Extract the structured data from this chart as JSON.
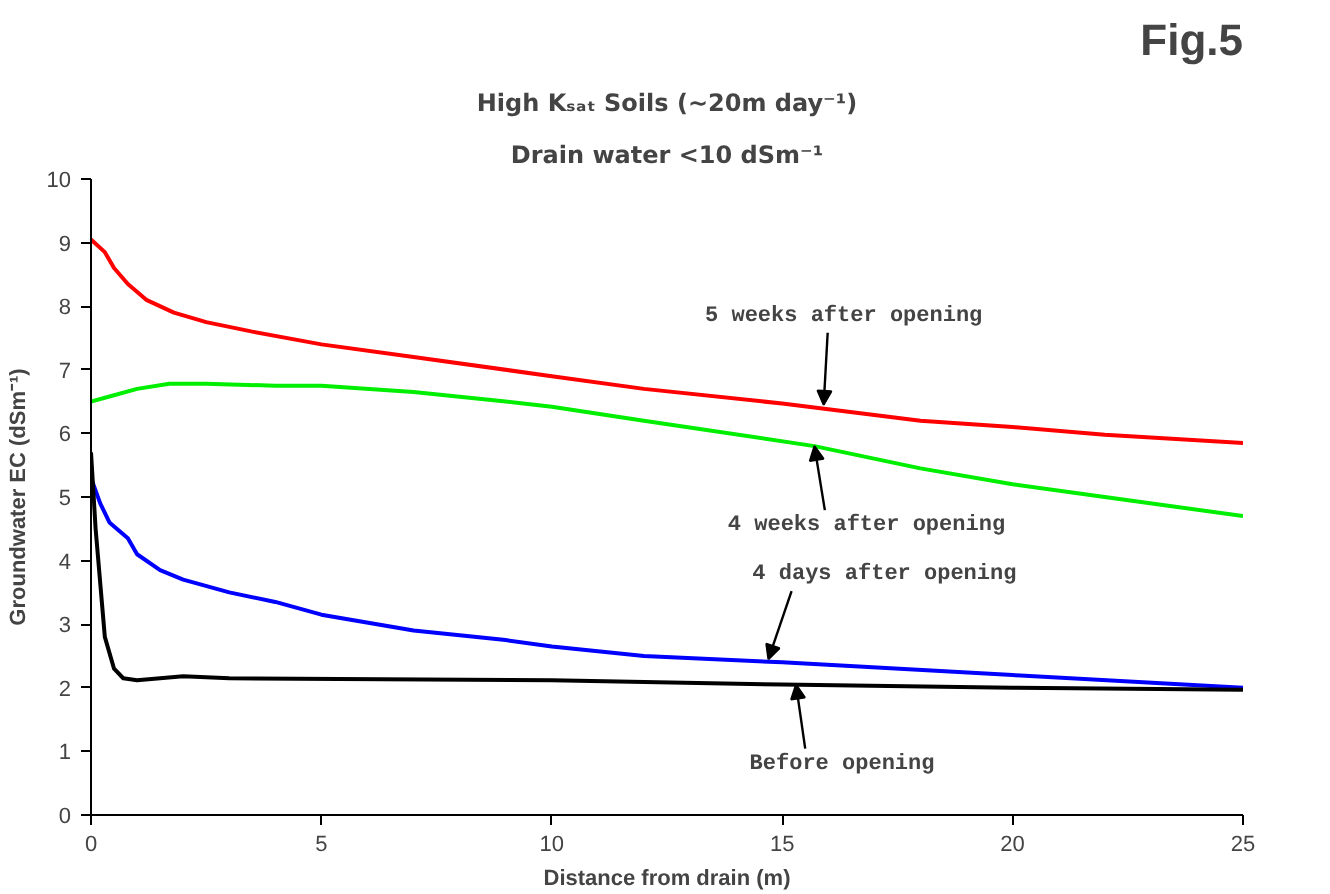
{
  "chart_data": {
    "type": "line",
    "title": "High Kₛₐₜ Soils (~20m day⁻¹)",
    "subtitle": "Drain water <10 dSm⁻¹",
    "xlabel": "Distance from drain (m)",
    "ylabel": "Groundwater EC (dSm⁻¹)",
    "xlim": [
      0,
      25
    ],
    "xticks": [
      0,
      5,
      10,
      15,
      20,
      25
    ],
    "ylim": [
      0,
      10
    ],
    "yticks": [
      0,
      1,
      2,
      3,
      4,
      5,
      6,
      7,
      8,
      9,
      10
    ],
    "grid": false,
    "series": [
      {
        "color": "#ff0000",
        "x": [
          0,
          0.3,
          0.5,
          0.8,
          1.2,
          1.8,
          2.5,
          3.5,
          5,
          7,
          10,
          12,
          15,
          18,
          20,
          22,
          25
        ],
        "values": [
          9.05,
          8.85,
          8.6,
          8.35,
          8.1,
          7.9,
          7.75,
          7.6,
          7.4,
          7.2,
          6.9,
          6.7,
          6.47,
          6.2,
          6.1,
          5.98,
          5.85
        ]
      },
      {
        "color": "#00ee00",
        "x": [
          0,
          0.5,
          1,
          1.7,
          2.5,
          4,
          5,
          7,
          9,
          10,
          12,
          15.7,
          18,
          20,
          22,
          25
        ],
        "values": [
          6.5,
          6.6,
          6.7,
          6.78,
          6.78,
          6.75,
          6.75,
          6.65,
          6.5,
          6.42,
          6.2,
          5.8,
          5.45,
          5.2,
          5.0,
          4.7
        ]
      },
      {
        "color": "#0000ff",
        "x": [
          0,
          0.2,
          0.4,
          0.8,
          1,
          1.5,
          2,
          3,
          4,
          5,
          7,
          9,
          10,
          12,
          15,
          20,
          25
        ],
        "values": [
          5.3,
          4.9,
          4.6,
          4.35,
          4.1,
          3.85,
          3.7,
          3.5,
          3.35,
          3.15,
          2.9,
          2.75,
          2.65,
          2.5,
          2.4,
          2.2,
          2.0
        ]
      },
      {
        "color": "#000000",
        "x": [
          0,
          0.1,
          0.3,
          0.5,
          0.7,
          1,
          1.5,
          2,
          3,
          10,
          15,
          20,
          25
        ],
        "values": [
          5.7,
          4.5,
          2.8,
          2.3,
          2.15,
          2.12,
          2.15,
          2.18,
          2.15,
          2.12,
          2.05,
          2.0,
          1.97
        ]
      }
    ],
    "annotations": [
      "Fig.5",
      {
        "text": "5 weeks after opening",
        "x": 15.9,
        "y": 6.45
      },
      {
        "text": "4 weeks after opening",
        "x": 15.7,
        "y": 5.8
      },
      {
        "text": "4 days after opening",
        "x": 14.7,
        "y": 2.45
      },
      {
        "text": "Before opening",
        "x": 15.3,
        "y": 2.05
      }
    ]
  }
}
